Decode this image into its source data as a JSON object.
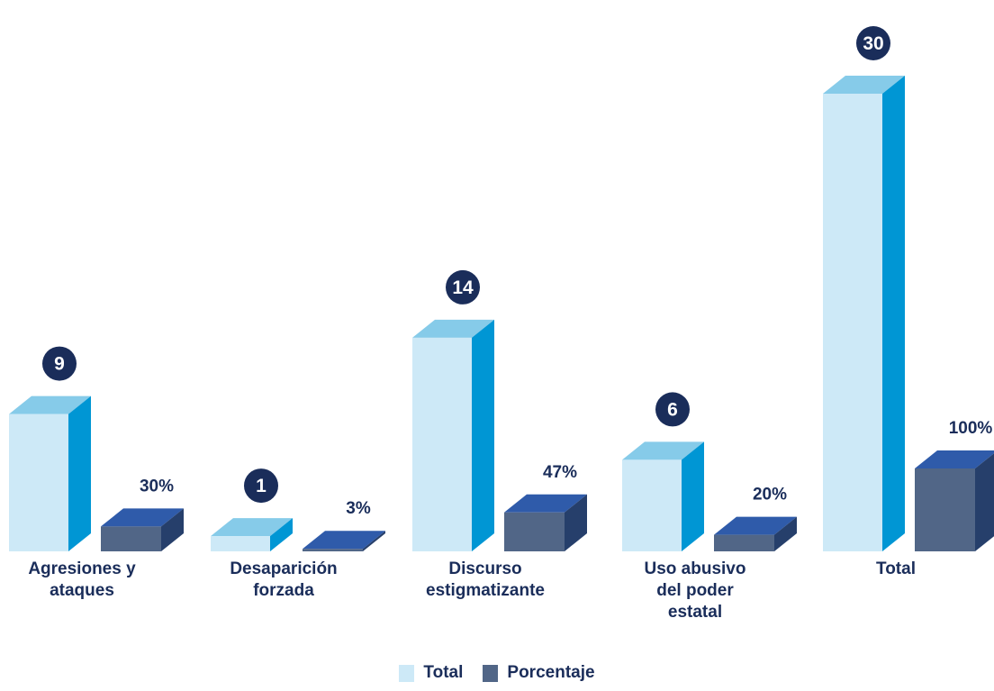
{
  "chart_data": {
    "type": "bar",
    "categories": [
      [
        "Agresiones y",
        "ataques"
      ],
      [
        "Desaparición",
        "forzada"
      ],
      [
        "Discurso",
        "estigmatizante"
      ],
      [
        "Uso abusivo",
        "del poder",
        "estatal"
      ],
      [
        "Total"
      ]
    ],
    "series": [
      {
        "name": "Total",
        "values": [
          9,
          1,
          14,
          6,
          30
        ],
        "labels": [
          "9",
          "1",
          "14",
          "6",
          "30"
        ]
      },
      {
        "name": "Porcentaje",
        "values": [
          30,
          3,
          47,
          20,
          100
        ],
        "labels": [
          "30%",
          "3%",
          "47%",
          "20%",
          "100%"
        ]
      }
    ],
    "legend_position": "bottom-center",
    "grid": false
  },
  "colors": {
    "total_front": "#cde9f7",
    "total_top": "#86cbe9",
    "total_side": "#0096d4",
    "pct_front": "#516687",
    "pct_top": "#2f5baa",
    "pct_side": "#263f6b",
    "badge_fill": "#1a2d5a",
    "badge_ring": "#ffffff",
    "text": "#1a2d5a"
  }
}
